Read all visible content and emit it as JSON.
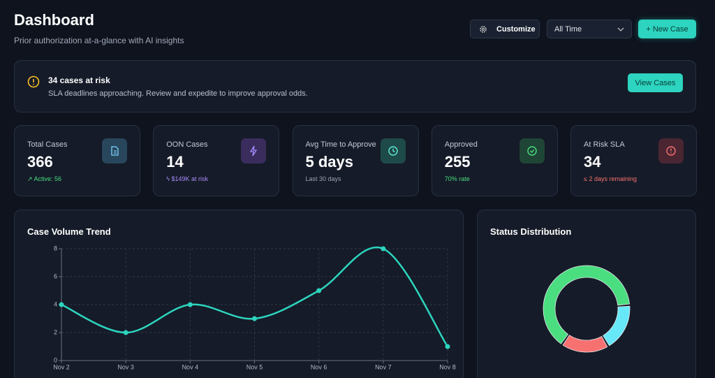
{
  "header": {
    "title": "Dashboard",
    "subtitle": "Prior authorization at-a-glance with AI insights",
    "buttons": [
      "Customize",
      "All Time",
      "+ New Case"
    ]
  },
  "alert": {
    "title": "34 cases at risk",
    "text": "SLA deadlines approaching. Review and expedite to improve approval odds.",
    "button": "View Cases"
  },
  "stats": [
    {
      "label": "Total Cases",
      "value": "366",
      "note": "Active: 56"
    },
    {
      "label": "OON Cases",
      "value": "14",
      "note": "$149K at risk"
    },
    {
      "label": "Avg Time to Approve",
      "value": "5 days",
      "note": "Last 30 days"
    },
    {
      "label": "Approved",
      "value": "255",
      "note": "70% rate"
    },
    {
      "label": "At Risk SLA",
      "value": "34",
      "note": "≤ 2 days remaining"
    }
  ],
  "chart_data": [
    {
      "type": "line",
      "title": "Case Volume Trend",
      "categories": [
        "Nov 2",
        "Nov 3",
        "Nov 4",
        "Nov 5",
        "Nov 6",
        "Nov 7",
        "Nov 8"
      ],
      "values": [
        4,
        2,
        4,
        3,
        5,
        8,
        1
      ],
      "color": "#2dd4bf",
      "ylim": [
        0,
        8
      ],
      "yticks": [
        0,
        2,
        4,
        6,
        8
      ],
      "grid": true
    },
    {
      "type": "pie",
      "title": "Status Distribution",
      "values": [
        18,
        18,
        64
      ],
      "colors": [
        "#67e8f9",
        "#f87171",
        "#4ade80"
      ]
    }
  ]
}
